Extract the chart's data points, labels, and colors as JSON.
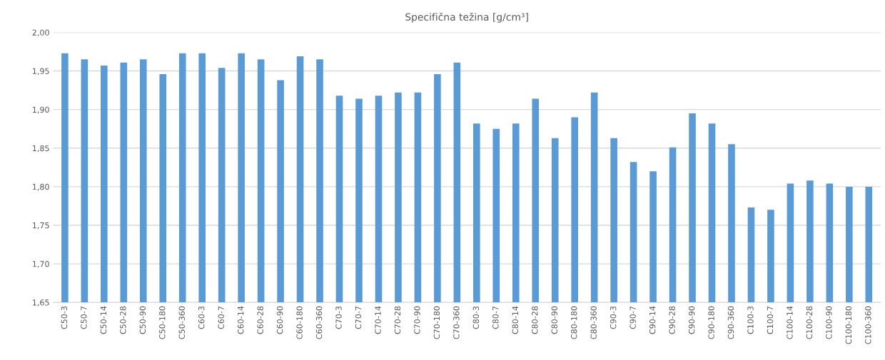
{
  "chart_data": {
    "type": "bar",
    "title": "Specifična težina [g/cm³]",
    "categories": [
      "C50-3",
      "C50-7",
      "C50-14",
      "C50-28",
      "C50-90",
      "C50-180",
      "C50-360",
      "C60-3",
      "C60-7",
      "C60-14",
      "C60-28",
      "C60-90",
      "C60-180",
      "C60-360",
      "C70-3",
      "C70-7",
      "C70-14",
      "C70-28",
      "C70-90",
      "C70-180",
      "C70-360",
      "C80-3",
      "C80-7",
      "C80-14",
      "C80-28",
      "C80-90",
      "C80-180",
      "C80-360",
      "C90-3",
      "C90-7",
      "C90-14",
      "C90-28",
      "C90-90",
      "C90-180",
      "C90-360",
      "C100-3",
      "C100-7",
      "C100-14",
      "C100-28",
      "C100-90",
      "C100-180",
      "C100-360"
    ],
    "values": [
      1.973,
      1.965,
      1.957,
      1.961,
      1.965,
      1.946,
      1.973,
      1.973,
      1.954,
      1.973,
      1.965,
      1.938,
      1.969,
      1.965,
      1.918,
      1.914,
      1.918,
      1.922,
      1.922,
      1.946,
      1.961,
      1.882,
      1.875,
      1.882,
      1.914,
      1.863,
      1.89,
      1.922,
      1.863,
      1.832,
      1.82,
      1.851,
      1.895,
      1.882,
      1.855,
      1.773,
      1.77,
      1.804,
      1.808,
      1.804,
      1.8,
      1.8
    ],
    "color": "#5b9bd5",
    "ylim": [
      1.65,
      2.0
    ],
    "yticks": [
      {
        "value": 1.65,
        "label": "1,65"
      },
      {
        "value": 1.7,
        "label": "1,70"
      },
      {
        "value": 1.75,
        "label": "1,75"
      },
      {
        "value": 1.8,
        "label": "1,80"
      },
      {
        "value": 1.85,
        "label": "1,85"
      },
      {
        "value": 1.9,
        "label": "1,90"
      },
      {
        "value": 1.95,
        "label": "1,95"
      },
      {
        "value": 2.0,
        "label": "2,00"
      }
    ],
    "grid": "y"
  }
}
